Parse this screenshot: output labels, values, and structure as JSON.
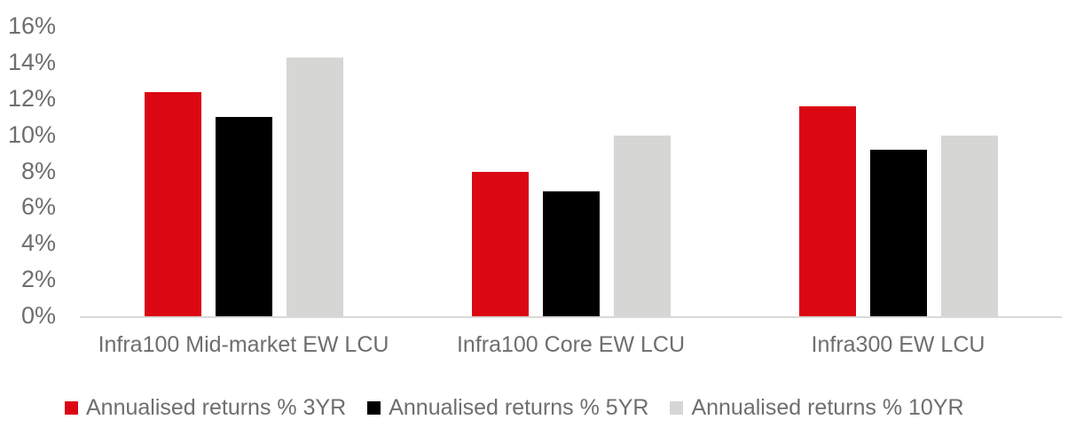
{
  "chart_data": {
    "type": "bar",
    "title": "",
    "categories": [
      "Infra100 Mid-market EW LCU",
      "Infra100 Core EW LCU",
      "Infra300 EW LCU"
    ],
    "series": [
      {
        "name": "Annualised returns % 3YR",
        "color": "#DB0713",
        "values": [
          12.4,
          8.0,
          11.6
        ]
      },
      {
        "name": "Annualised returns % 5YR",
        "color": "#000000",
        "values": [
          11.0,
          6.9,
          9.2
        ]
      },
      {
        "name": "Annualised returns % 10YR",
        "color": "#D6D6D4",
        "values": [
          14.3,
          10.0,
          10.0
        ]
      }
    ],
    "ylabel": "",
    "xlabel": "",
    "ylim": [
      0,
      16
    ],
    "ytick_step": 2,
    "ytick_labels": [
      "0%",
      "2%",
      "4%",
      "6%",
      "8%",
      "10%",
      "12%",
      "14%",
      "16%"
    ],
    "grid": false,
    "legend_position": "bottom",
    "colors": {
      "axis_line": "#D9D9D9",
      "tick_text": "#6E6E6E",
      "category_text": "#6E6E6E",
      "legend_text": "#6E6E6E",
      "background": "#FFFFFF"
    }
  }
}
